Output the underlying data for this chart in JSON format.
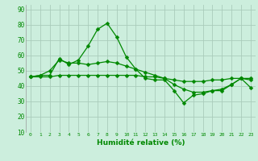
{
  "xlabel": "Humidité relative (%)",
  "background_color": "#cceedd",
  "grid_color": "#aaccbb",
  "line_color": "#008800",
  "marker": "D",
  "markersize": 2.5,
  "linewidth": 0.9,
  "xlim": [
    -0.5,
    23.5
  ],
  "ylim": [
    10,
    93
  ],
  "yticks": [
    10,
    20,
    30,
    40,
    50,
    60,
    70,
    80,
    90
  ],
  "xticks": [
    0,
    1,
    2,
    3,
    4,
    5,
    6,
    7,
    8,
    9,
    10,
    11,
    12,
    13,
    14,
    15,
    16,
    17,
    18,
    19,
    20,
    21,
    22,
    23
  ],
  "series1": [
    46,
    47,
    47,
    58,
    54,
    57,
    66,
    77,
    81,
    72,
    59,
    51,
    45,
    44,
    44,
    37,
    29,
    34,
    35,
    37,
    37,
    41,
    45,
    39
  ],
  "series2": [
    46,
    47,
    50,
    57,
    55,
    55,
    54,
    55,
    56,
    55,
    53,
    51,
    49,
    47,
    45,
    41,
    38,
    36,
    36,
    37,
    38,
    41,
    45,
    44
  ],
  "series3": [
    46,
    46,
    46,
    47,
    47,
    47,
    47,
    47,
    47,
    47,
    47,
    47,
    46,
    46,
    45,
    44,
    43,
    43,
    43,
    44,
    44,
    45,
    45,
    45
  ]
}
